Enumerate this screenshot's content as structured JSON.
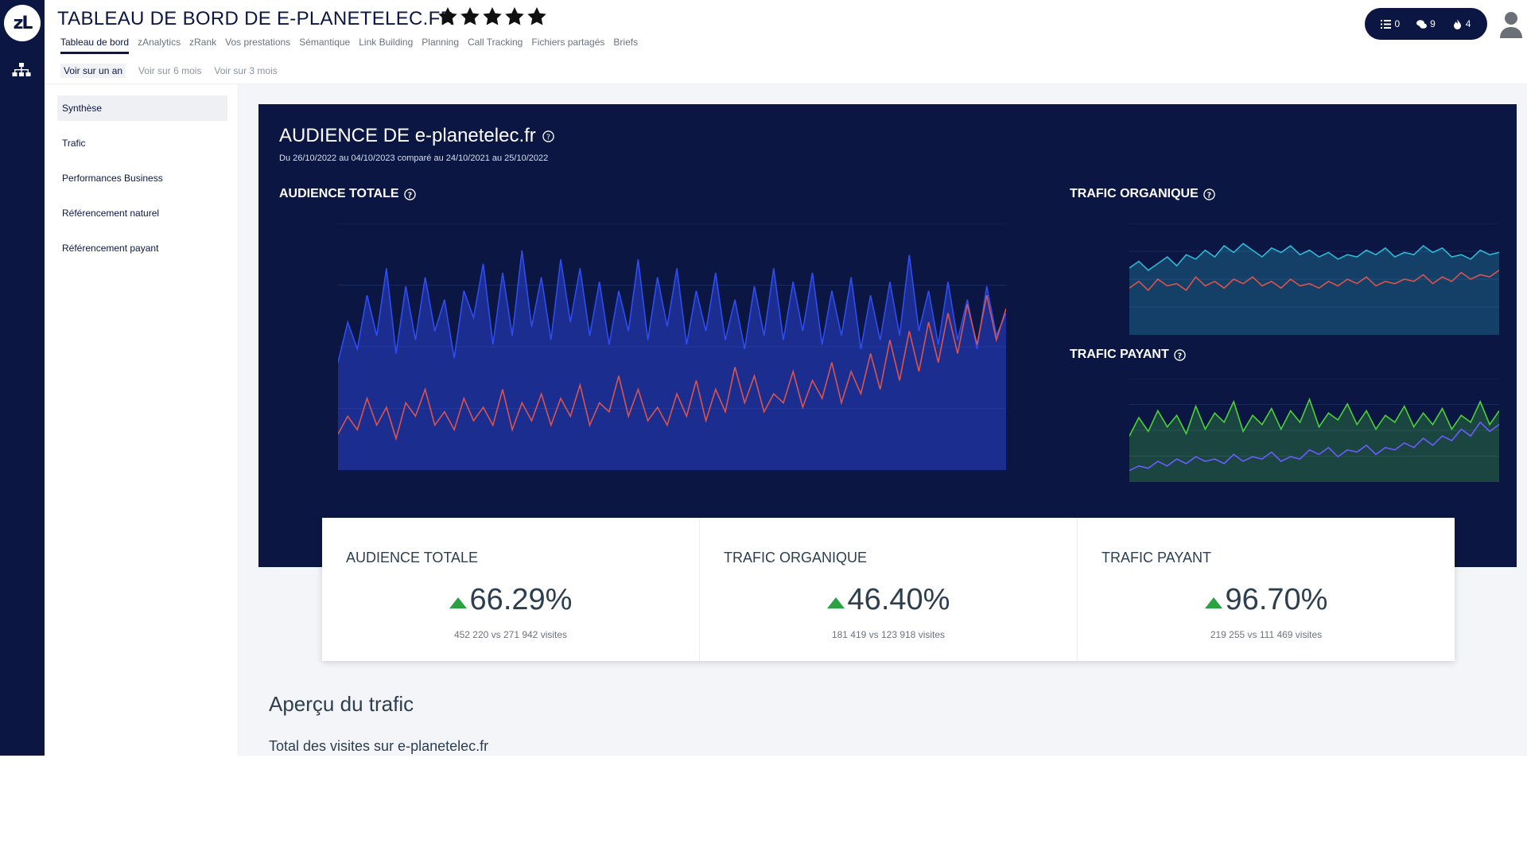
{
  "header": {
    "title": "TABLEAU DE BORD DE E-PLANETELEC.FR",
    "logo_text": "zL",
    "nav": [
      "Tableau de bord",
      "zAnalytics",
      "zRank",
      "Vos prestations",
      "Sémantique",
      "Link Building",
      "Planning",
      "Call Tracking",
      "Fichiers partagés",
      "Briefs"
    ],
    "subnav": [
      "Voir sur un an",
      "Voir sur 6 mois",
      "Voir sur 3 mois"
    ],
    "counters": {
      "tasks": "0",
      "messages": "9",
      "alerts": "4"
    }
  },
  "sidebar": {
    "items": [
      "Synthèse",
      "Trafic",
      "Performances Business",
      "Référencement naturel",
      "Référencement payant"
    ]
  },
  "audience": {
    "title": "AUDIENCE DE e-planetelec.fr",
    "subtitle": "Du 26/10/2022 au 04/10/2023 comparé au 24/10/2021 au 25/10/2022",
    "sections": {
      "total": "AUDIENCE TOTALE",
      "organic": "TRAFIC ORGANIQUE",
      "paid": "TRAFIC PAYANT"
    }
  },
  "kpis": [
    {
      "label": "AUDIENCE TOTALE",
      "value": "66.29%",
      "note": "452 220 vs 271 942 visites"
    },
    {
      "label": "TRAFIC ORGANIQUE",
      "value": "46.40%",
      "note": "181 419 vs 123 918 visites"
    },
    {
      "label": "TRAFIC PAYANT",
      "value": "96.70%",
      "note": "219 255 vs 111 469 visites"
    }
  ],
  "section_titles": {
    "apercu": "Aperçu du trafic",
    "total": "Total des visites sur e-planetelec.fr"
  },
  "colors": {
    "navy": "#0b1742",
    "blue_series": "#2f4cf0",
    "red_series": "#d9534f",
    "green_series": "#4cd13a",
    "purple_series": "#6a5cff",
    "cyan_series": "#2fb9d8",
    "up_arrow": "#2aa243"
  },
  "icons": {
    "stars": "star-icon",
    "tasks": "list-icon",
    "messages": "chat-icon",
    "alerts": "flame-icon",
    "avatar": "user-icon",
    "sitemap": "sitemap-icon",
    "help": "help-icon",
    "up": "arrow-up-icon"
  },
  "chart_data": [
    {
      "type": "area",
      "name": "Audience totale",
      "x": "daily visits, 26/10/2022 to 04/10/2023",
      "series": [
        {
          "name": "current",
          "values": [
            48,
            66,
            54,
            78,
            60,
            90,
            52,
            82,
            58,
            86,
            62,
            76,
            50,
            80,
            68,
            92,
            56,
            88,
            60,
            98,
            64,
            86,
            58,
            94,
            66,
            90,
            60,
            84,
            56,
            80,
            62,
            94,
            58,
            86,
            64,
            90,
            56,
            80,
            62,
            88,
            58,
            76,
            54,
            82,
            60,
            90,
            58,
            84,
            62,
            88,
            56,
            80,
            60,
            86,
            54,
            78,
            58,
            84,
            60,
            96,
            62,
            80,
            56,
            84,
            58,
            76,
            54,
            82,
            60,
            70
          ]
        },
        {
          "name": "comparison",
          "values": [
            16,
            24,
            18,
            32,
            20,
            28,
            14,
            30,
            24,
            36,
            20,
            26,
            18,
            32,
            22,
            28,
            20,
            36,
            18,
            30,
            22,
            34,
            20,
            32,
            24,
            38,
            20,
            30,
            26,
            42,
            24,
            36,
            22,
            28,
            20,
            34,
            24,
            40,
            22,
            36,
            26,
            46,
            30,
            42,
            26,
            34,
            30,
            44,
            28,
            40,
            32,
            48,
            30,
            44,
            34,
            52,
            36,
            58,
            40,
            62,
            44,
            66,
            48,
            70,
            52,
            74,
            56,
            78,
            58,
            72
          ]
        }
      ]
    },
    {
      "type": "area",
      "name": "Trafic organique",
      "series": [
        {
          "name": "current",
          "values": [
            60,
            66,
            58,
            64,
            70,
            62,
            72,
            68,
            76,
            70,
            80,
            74,
            82,
            76,
            70,
            78,
            74,
            80,
            72,
            76,
            70,
            74,
            68,
            72,
            70,
            76,
            72,
            78,
            70,
            74,
            72,
            80,
            74,
            78,
            70,
            72,
            68,
            76,
            72,
            74
          ]
        },
        {
          "name": "comparison",
          "values": [
            42,
            48,
            40,
            50,
            44,
            46,
            40,
            52,
            44,
            48,
            42,
            50,
            46,
            52,
            44,
            48,
            42,
            50,
            44,
            46,
            42,
            48,
            44,
            50,
            46,
            52,
            44,
            48,
            46,
            50,
            48,
            54,
            46,
            52,
            48,
            56,
            50,
            54,
            52,
            58
          ]
        }
      ]
    },
    {
      "type": "area",
      "name": "Trafic payant",
      "series": [
        {
          "name": "current",
          "values": [
            40,
            56,
            44,
            62,
            48,
            58,
            42,
            66,
            46,
            60,
            52,
            70,
            44,
            58,
            50,
            64,
            46,
            62,
            52,
            72,
            48,
            60,
            54,
            68,
            50,
            62,
            46,
            58,
            52,
            66,
            48,
            60,
            50,
            64,
            46,
            58,
            52,
            70,
            50,
            62
          ]
        },
        {
          "name": "comparison",
          "values": [
            10,
            14,
            12,
            18,
            14,
            20,
            16,
            22,
            18,
            20,
            16,
            24,
            18,
            22,
            20,
            26,
            18,
            22,
            20,
            28,
            24,
            30,
            22,
            28,
            26,
            32,
            24,
            30,
            28,
            34,
            30,
            38,
            32,
            40,
            36,
            46,
            40,
            52,
            44,
            50
          ]
        }
      ]
    }
  ]
}
